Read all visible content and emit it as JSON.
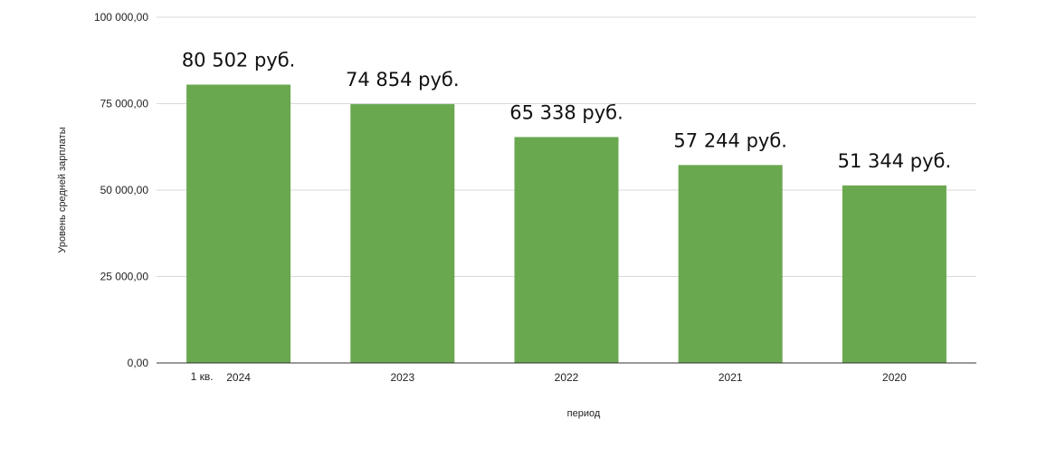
{
  "chart_data": {
    "type": "bar",
    "title": "",
    "xlabel": "период",
    "ylabel": "Уровень средней зарплаты",
    "categories": [
      "2024",
      "2023",
      "2022",
      "2021",
      "2020"
    ],
    "category_prefix": {
      "index": 0,
      "text": "1 кв."
    },
    "values": [
      80502,
      74854,
      65338,
      57244,
      51344
    ],
    "data_labels": [
      "80 502 руб.",
      "74 854 руб.",
      "65 338 руб.",
      "57 244 руб.",
      "51 344 руб."
    ],
    "yticks": [
      0,
      25000,
      50000,
      75000,
      100000
    ],
    "ytick_labels": [
      "0,00",
      "25 000,00",
      "50 000,00",
      "75 000,00",
      "100 000,00"
    ],
    "ylim": [
      0,
      100000
    ],
    "grid": true,
    "legend": "none",
    "colors": {
      "bar": "#6aa84f",
      "grid": "#d9d9d9",
      "axis": "#333333"
    }
  }
}
